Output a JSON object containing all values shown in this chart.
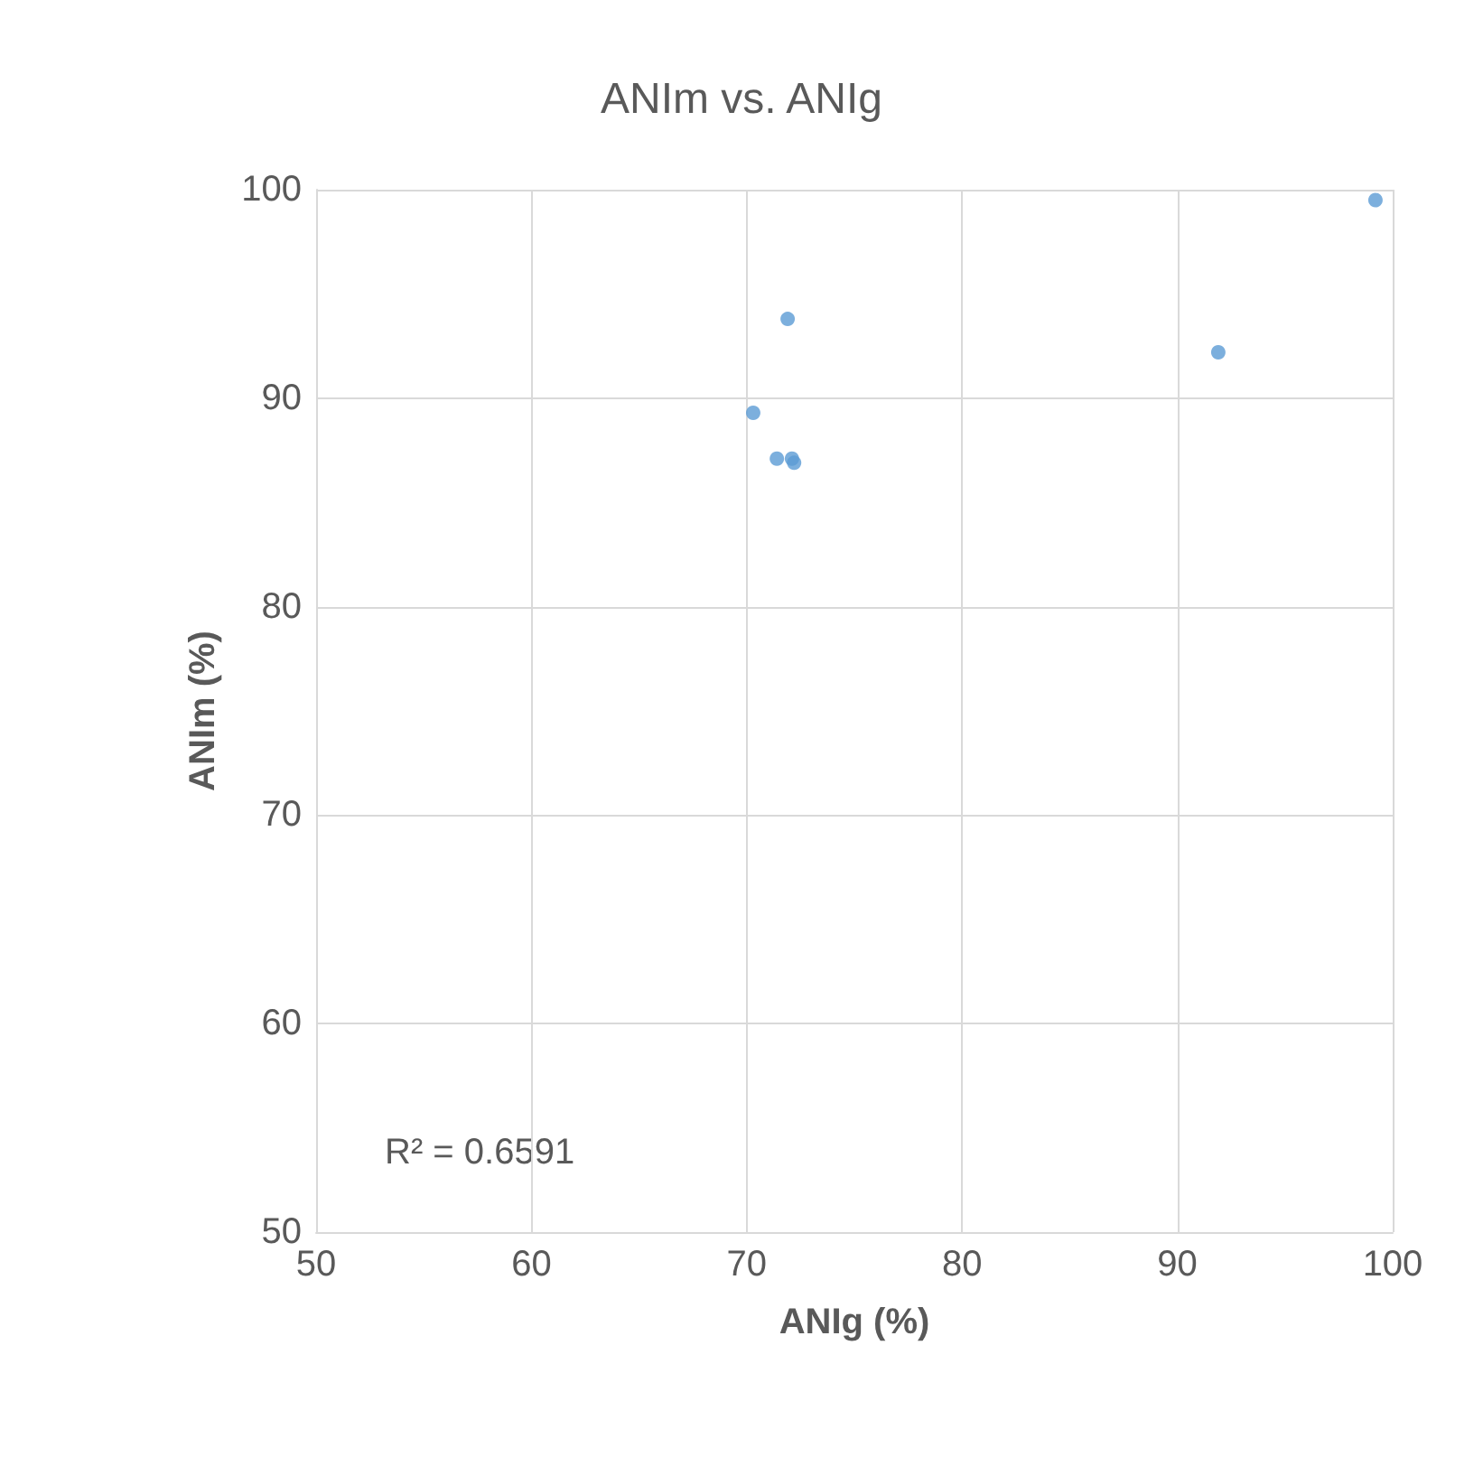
{
  "chart_data": {
    "type": "scatter",
    "title": "ANIm vs. ANIg",
    "xlabel": "ANIg (%)",
    "ylabel": "ANIm (%)",
    "x": [
      99.2,
      91.9,
      71.9,
      70.3,
      71.4,
      72.1,
      72.2
    ],
    "series": [
      {
        "color": "#5b9bd5",
        "values": [
          99.5,
          92.2,
          93.8,
          89.3,
          87.1,
          87.1,
          86.9
        ]
      }
    ],
    "xlim": [
      50,
      100
    ],
    "xticks": [
      50,
      60,
      70,
      80,
      90,
      100
    ],
    "ylim": [
      50,
      100
    ],
    "yticks": [
      50,
      60,
      70,
      80,
      90,
      100
    ],
    "grid": true,
    "marker": "circle",
    "annotations": [
      "R² = 0.6591"
    ]
  }
}
